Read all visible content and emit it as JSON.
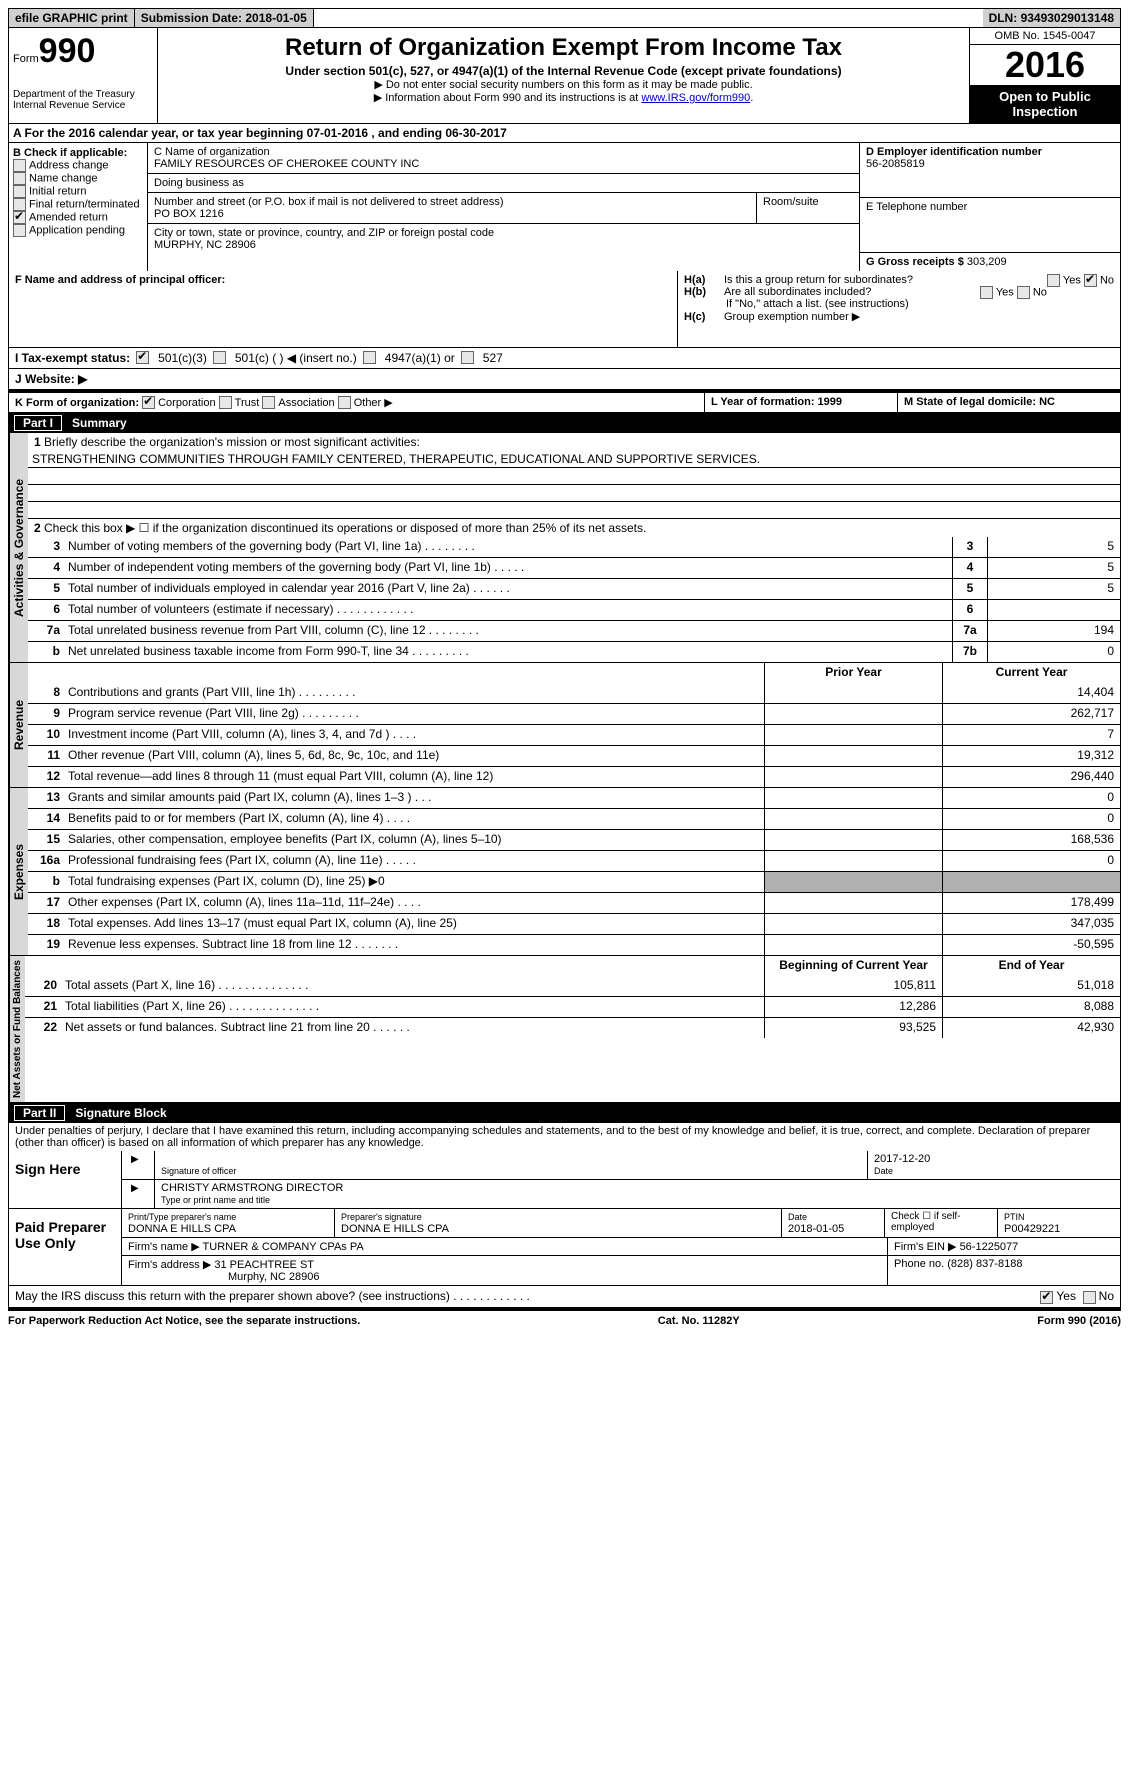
{
  "topbar": {
    "efile": "efile GRAPHIC print",
    "submission_label": "Submission Date: ",
    "submission_date": "2018-01-05",
    "dln_label": "DLN: ",
    "dln": "93493029013148"
  },
  "header": {
    "form_word": "Form",
    "form_num": "990",
    "dept": "Department of the Treasury",
    "irs": "Internal Revenue Service",
    "title": "Return of Organization Exempt From Income Tax",
    "subtitle": "Under section 501(c), 527, or 4947(a)(1) of the Internal Revenue Code (except private foundations)",
    "note1": "▶ Do not enter social security numbers on this form as it may be made public.",
    "note2_pre": "▶ Information about Form 990 and its instructions is at ",
    "note2_link": "www.IRS.gov/form990",
    "omb": "OMB No. 1545-0047",
    "year": "2016",
    "open": "Open to Public Inspection"
  },
  "section_a": "A  For the 2016 calendar year, or tax year beginning 07-01-2016    , and ending 06-30-2017",
  "section_b": {
    "label": "B Check if applicable:",
    "items": [
      "Address change",
      "Name change",
      "Initial return",
      "Final return/terminated",
      "Amended return",
      "Application pending"
    ],
    "checked": [
      false,
      false,
      false,
      false,
      true,
      false
    ]
  },
  "section_c": {
    "name_label": "C Name of organization",
    "name": "FAMILY RESOURCES OF CHEROKEE COUNTY INC",
    "dba_label": "Doing business as",
    "dba": "",
    "street_label": "Number and street (or P.O. box if mail is not delivered to street address)",
    "room_label": "Room/suite",
    "street": "PO BOX 1216",
    "city_label": "City or town, state or province, country, and ZIP or foreign postal code",
    "city": "MURPHY, NC  28906"
  },
  "section_d": {
    "ein_label": "D Employer identification number",
    "ein": "56-2085819",
    "tel_label": "E Telephone number",
    "tel": "",
    "gross_label": "G Gross receipts $ ",
    "gross": "303,209"
  },
  "section_f": {
    "label": "F  Name and address of principal officer:",
    "value": ""
  },
  "section_h": {
    "a": "Is this a group return for subordinates?",
    "b": "Are all subordinates included?",
    "b_note": "If \"No,\" attach a list. (see instructions)",
    "c": "Group exemption number ▶",
    "yes": "Yes",
    "no": "No"
  },
  "section_i": "I  Tax-exempt status:",
  "i_opts": [
    "501(c)(3)",
    "501(c) (   ) ◀ (insert no.)",
    "4947(a)(1) or",
    "527"
  ],
  "section_j": "J  Website: ▶",
  "section_k": {
    "label": "K Form of organization:",
    "opts": [
      "Corporation",
      "Trust",
      "Association",
      "Other ▶"
    ]
  },
  "section_l": "L Year of formation: 1999",
  "section_m": "M State of legal domicile: NC",
  "part1": {
    "header": "Summary",
    "partnum": "Part I",
    "line1": "Briefly describe the organization's mission or most significant activities:",
    "mission": "STRENGTHENING COMMUNITIES THROUGH FAMILY CENTERED, THERAPEUTIC, EDUCATIONAL AND SUPPORTIVE SERVICES.",
    "line2": "Check this box ▶ ☐  if the organization discontinued its operations or disposed of more than 25% of its net assets.",
    "governance": "Activities & Governance",
    "revenue": "Revenue",
    "expenses": "Expenses",
    "netassets": "Net Assets or Fund Balances",
    "prior_year": "Prior Year",
    "current_year": "Current Year",
    "begin_year": "Beginning of Current Year",
    "end_year": "End of Year",
    "rows_gov": [
      {
        "num": "3",
        "desc": "Number of voting members of the governing body (Part VI, line 1a)   .    .    .    .    .    .    .    .",
        "mn": "3",
        "mv": "5"
      },
      {
        "num": "4",
        "desc": "Number of independent voting members of the governing body (Part VI, line 1b)   .    .    .    .    .",
        "mn": "4",
        "mv": "5"
      },
      {
        "num": "5",
        "desc": "Total number of individuals employed in calendar year 2016 (Part V, line 2a)   .    .    .    .    .    .",
        "mn": "5",
        "mv": "5"
      },
      {
        "num": "6",
        "desc": "Total number of volunteers (estimate if necessary)   .    .    .    .    .    .    .    .    .    .    .    .",
        "mn": "6",
        "mv": ""
      },
      {
        "num": "7a",
        "desc": "Total unrelated business revenue from Part VIII, column (C), line 12   .    .    .    .    .    .    .    .",
        "mn": "7a",
        "mv": "194"
      },
      {
        "num": "b",
        "desc": "Net unrelated business taxable income from Form 990-T, line 34   .    .    .    .    .    .    .    .    .",
        "mn": "7b",
        "mv": "0"
      }
    ],
    "rows_rev": [
      {
        "num": "8",
        "desc": "Contributions and grants (Part VIII, line 1h)   .    .    .    .    .    .    .    .    .",
        "p": "",
        "c": "14,404"
      },
      {
        "num": "9",
        "desc": "Program service revenue (Part VIII, line 2g)   .    .    .    .    .    .    .    .    .",
        "p": "",
        "c": "262,717"
      },
      {
        "num": "10",
        "desc": "Investment income (Part VIII, column (A), lines 3, 4, and 7d )   .    .    .    .",
        "p": "",
        "c": "7"
      },
      {
        "num": "11",
        "desc": "Other revenue (Part VIII, column (A), lines 5, 6d, 8c, 9c, 10c, and 11e)",
        "p": "",
        "c": "19,312"
      },
      {
        "num": "12",
        "desc": "Total revenue—add lines 8 through 11 (must equal Part VIII, column (A), line 12)",
        "p": "",
        "c": "296,440"
      }
    ],
    "rows_exp": [
      {
        "num": "13",
        "desc": "Grants and similar amounts paid (Part IX, column (A), lines 1–3 )   .    .    .",
        "p": "",
        "c": "0"
      },
      {
        "num": "14",
        "desc": "Benefits paid to or for members (Part IX, column (A), line 4)   .    .    .    .",
        "p": "",
        "c": "0"
      },
      {
        "num": "15",
        "desc": "Salaries, other compensation, employee benefits (Part IX, column (A), lines 5–10)",
        "p": "",
        "c": "168,536"
      },
      {
        "num": "16a",
        "desc": "Professional fundraising fees (Part IX, column (A), line 11e)   .    .    .    .    .",
        "p": "",
        "c": "0"
      },
      {
        "num": "b",
        "desc": "Total fundraising expenses (Part IX, column (D), line 25) ▶0",
        "p": "shaded",
        "c": "shaded"
      },
      {
        "num": "17",
        "desc": "Other expenses (Part IX, column (A), lines 11a–11d, 11f–24e)   .    .    .    .",
        "p": "",
        "c": "178,499"
      },
      {
        "num": "18",
        "desc": "Total expenses. Add lines 13–17 (must equal Part IX, column (A), line 25)",
        "p": "",
        "c": "347,035"
      },
      {
        "num": "19",
        "desc": "Revenue less expenses. Subtract line 18 from line 12   .    .    .    .    .    .    .",
        "p": "",
        "c": "-50,595"
      }
    ],
    "rows_net": [
      {
        "num": "20",
        "desc": "Total assets (Part X, line 16)   .    .    .    .    .    .    .    .    .    .    .    .    .    .",
        "p": "105,811",
        "c": "51,018"
      },
      {
        "num": "21",
        "desc": "Total liabilities (Part X, line 26)   .    .    .    .    .    .    .    .    .    .    .    .    .    .",
        "p": "12,286",
        "c": "8,088"
      },
      {
        "num": "22",
        "desc": "Net assets or fund balances. Subtract line 21 from line 20  .    .    .    .    .    .",
        "p": "93,525",
        "c": "42,930"
      }
    ]
  },
  "part2": {
    "partnum": "Part II",
    "header": "Signature Block",
    "declaration": "Under penalties of perjury, I declare that I have examined this return, including accompanying schedules and statements, and to the best of my knowledge and belief, it is true, correct, and complete. Declaration of preparer (other than officer) is based on all information of which preparer has any knowledge.",
    "sign_here": "Sign Here",
    "sig_officer": "Signature of officer",
    "sig_date": "2017-12-20",
    "date_lbl": "Date",
    "name_title": "CHRISTY ARMSTRONG DIRECTOR",
    "name_title_lbl": "Type or print name and title",
    "paid": "Paid Preparer Use Only",
    "prep_name_lbl": "Print/Type preparer's name",
    "prep_name": "DONNA E HILLS CPA",
    "prep_sig_lbl": "Preparer's signature",
    "prep_sig": "DONNA E HILLS CPA",
    "prep_date_lbl": "Date",
    "prep_date": "2018-01-05",
    "self_emp": "Check ☐ if self-employed",
    "ptin_lbl": "PTIN",
    "ptin": "P00429221",
    "firm_name_lbl": "Firm's name      ▶ ",
    "firm_name": "TURNER & COMPANY CPAs PA",
    "firm_ein_lbl": "Firm's EIN ▶ ",
    "firm_ein": "56-1225077",
    "firm_addr_lbl": "Firm's address ▶ ",
    "firm_addr1": "31 PEACHTREE ST",
    "firm_addr2": "Murphy, NC  28906",
    "phone_lbl": "Phone no. ",
    "phone": "(828) 837-8188",
    "discuss": "May the IRS discuss this return with the preparer shown above? (see instructions)   .    .    .    .    .    .    .    .    .    .    .    .",
    "yes": "Yes",
    "no": "No"
  },
  "footer": {
    "left": "For Paperwork Reduction Act Notice, see the separate instructions.",
    "mid": "Cat. No. 11282Y",
    "right": "Form 990 (2016)"
  }
}
